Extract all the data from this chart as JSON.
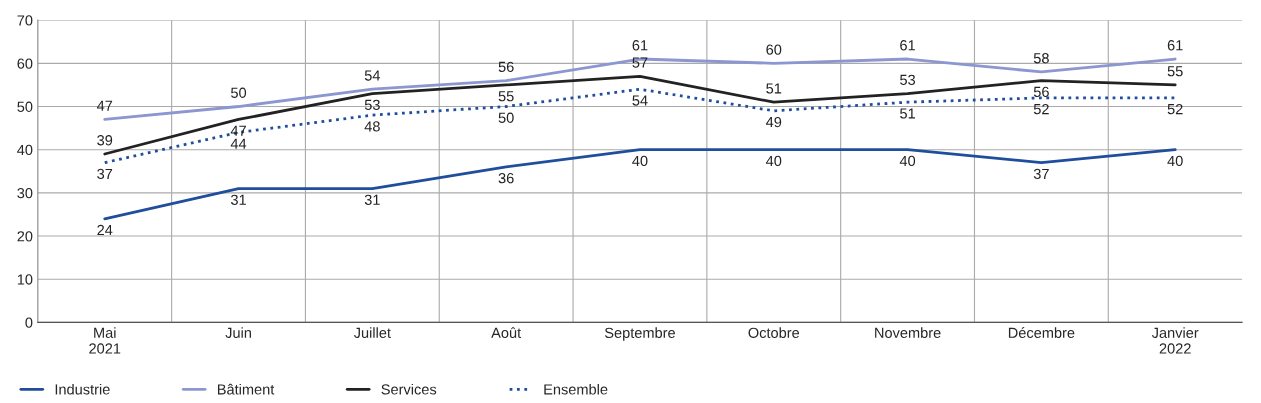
{
  "chart_data": {
    "type": "line",
    "categories": [
      "Mai\n2021",
      "Juin",
      "Juillet",
      "Août",
      "Septembre",
      "Octobre",
      "Novembre",
      "Décembre",
      "Janvier\n2022"
    ],
    "series": [
      {
        "name": "Industrie",
        "color": "#1f4e9c",
        "values": [
          24,
          31,
          31,
          36,
          40,
          40,
          40,
          37,
          40
        ]
      },
      {
        "name": "Bâtiment",
        "color": "#8c96d0",
        "values": [
          47,
          50,
          54,
          56,
          61,
          60,
          61,
          58,
          61
        ]
      },
      {
        "name": "Services",
        "color": "#222222",
        "values": [
          39,
          47,
          53,
          55,
          57,
          51,
          53,
          56,
          55
        ]
      },
      {
        "name": "Ensemble",
        "color": "#1f4e9c",
        "line_style": "dotted",
        "values": [
          37,
          44,
          48,
          50,
          54,
          49,
          51,
          52,
          52
        ]
      }
    ],
    "ylim": [
      0,
      70
    ],
    "yticks": [
      0,
      10,
      20,
      30,
      40,
      50,
      60,
      70
    ],
    "grid": true,
    "legend": "bottom left",
    "marker": "none",
    "data_labels": true
  }
}
